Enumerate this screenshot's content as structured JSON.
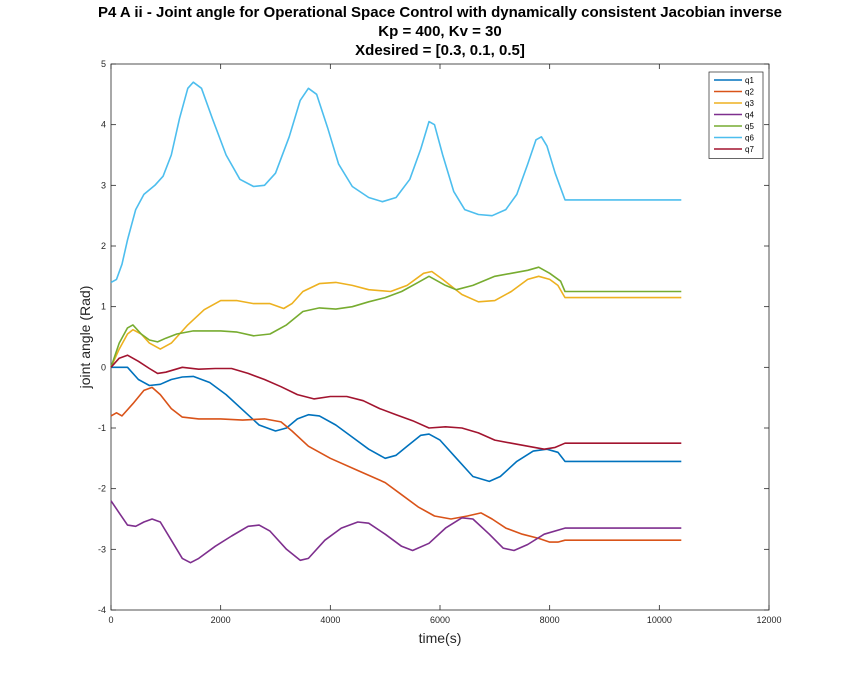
{
  "chart_data": {
    "type": "line",
    "title": "P4 A ii - Joint angle for Operational Space Control with dynamically consistent Jacobian inverse",
    "subtitle": "Kp = 400, Kv = 30",
    "subtitle2": "Xdesired = [0.3, 0.1, 0.5]",
    "xlabel": "time(s)",
    "ylabel": "joint angle (Rad)",
    "xlim": [
      0,
      12000
    ],
    "ylim": [
      -4,
      5
    ],
    "xticks": [
      0,
      2000,
      4000,
      6000,
      8000,
      10000,
      12000
    ],
    "yticks": [
      -4,
      -3,
      -2,
      -1,
      0,
      1,
      2,
      3,
      4,
      5
    ],
    "grid": false,
    "legend_position": "top-right",
    "series": [
      {
        "name": "q1",
        "color": "#0072BD",
        "points": [
          [
            0,
            0
          ],
          [
            300,
            0
          ],
          [
            500,
            -0.2
          ],
          [
            700,
            -0.3
          ],
          [
            900,
            -0.28
          ],
          [
            1100,
            -0.2
          ],
          [
            1300,
            -0.16
          ],
          [
            1500,
            -0.15
          ],
          [
            1800,
            -0.25
          ],
          [
            2100,
            -0.45
          ],
          [
            2400,
            -0.7
          ],
          [
            2700,
            -0.95
          ],
          [
            3000,
            -1.05
          ],
          [
            3200,
            -1
          ],
          [
            3400,
            -0.85
          ],
          [
            3600,
            -0.78
          ],
          [
            3800,
            -0.8
          ],
          [
            4100,
            -0.95
          ],
          [
            4400,
            -1.15
          ],
          [
            4700,
            -1.35
          ],
          [
            5000,
            -1.5
          ],
          [
            5200,
            -1.45
          ],
          [
            5400,
            -1.3
          ],
          [
            5650,
            -1.12
          ],
          [
            5800,
            -1.1
          ],
          [
            6000,
            -1.2
          ],
          [
            6300,
            -1.5
          ],
          [
            6600,
            -1.8
          ],
          [
            6900,
            -1.88
          ],
          [
            7100,
            -1.8
          ],
          [
            7400,
            -1.55
          ],
          [
            7700,
            -1.38
          ],
          [
            7950,
            -1.35
          ],
          [
            8150,
            -1.4
          ],
          [
            8280,
            -1.55
          ],
          [
            10400,
            -1.55
          ]
        ]
      },
      {
        "name": "q2",
        "color": "#D95319",
        "points": [
          [
            0,
            -0.8
          ],
          [
            100,
            -0.75
          ],
          [
            200,
            -0.8
          ],
          [
            400,
            -0.6
          ],
          [
            600,
            -0.38
          ],
          [
            750,
            -0.33
          ],
          [
            900,
            -0.45
          ],
          [
            1100,
            -0.68
          ],
          [
            1300,
            -0.82
          ],
          [
            1600,
            -0.85
          ],
          [
            2000,
            -0.85
          ],
          [
            2400,
            -0.87
          ],
          [
            2800,
            -0.85
          ],
          [
            3100,
            -0.9
          ],
          [
            3300,
            -1.05
          ],
          [
            3600,
            -1.3
          ],
          [
            4000,
            -1.5
          ],
          [
            4500,
            -1.7
          ],
          [
            5000,
            -1.9
          ],
          [
            5300,
            -2.1
          ],
          [
            5600,
            -2.3
          ],
          [
            5900,
            -2.45
          ],
          [
            6200,
            -2.5
          ],
          [
            6500,
            -2.45
          ],
          [
            6750,
            -2.4
          ],
          [
            6950,
            -2.5
          ],
          [
            7200,
            -2.65
          ],
          [
            7500,
            -2.75
          ],
          [
            7800,
            -2.82
          ],
          [
            8000,
            -2.88
          ],
          [
            8150,
            -2.88
          ],
          [
            8280,
            -2.85
          ],
          [
            10400,
            -2.85
          ]
        ]
      },
      {
        "name": "q3",
        "color": "#EDB120",
        "points": [
          [
            0,
            0
          ],
          [
            150,
            0.3
          ],
          [
            300,
            0.55
          ],
          [
            400,
            0.62
          ],
          [
            550,
            0.55
          ],
          [
            700,
            0.4
          ],
          [
            900,
            0.3
          ],
          [
            1100,
            0.4
          ],
          [
            1400,
            0.7
          ],
          [
            1700,
            0.95
          ],
          [
            2000,
            1.1
          ],
          [
            2300,
            1.1
          ],
          [
            2600,
            1.05
          ],
          [
            2900,
            1.05
          ],
          [
            3150,
            0.97
          ],
          [
            3300,
            1.05
          ],
          [
            3500,
            1.25
          ],
          [
            3800,
            1.38
          ],
          [
            4100,
            1.4
          ],
          [
            4400,
            1.35
          ],
          [
            4700,
            1.28
          ],
          [
            5100,
            1.25
          ],
          [
            5400,
            1.35
          ],
          [
            5700,
            1.55
          ],
          [
            5850,
            1.58
          ],
          [
            6050,
            1.45
          ],
          [
            6400,
            1.2
          ],
          [
            6700,
            1.08
          ],
          [
            7000,
            1.1
          ],
          [
            7300,
            1.25
          ],
          [
            7600,
            1.45
          ],
          [
            7800,
            1.5
          ],
          [
            8000,
            1.45
          ],
          [
            8150,
            1.35
          ],
          [
            8280,
            1.15
          ],
          [
            10400,
            1.15
          ]
        ]
      },
      {
        "name": "q4",
        "color": "#7E2F8E",
        "points": [
          [
            0,
            -2.2
          ],
          [
            150,
            -2.4
          ],
          [
            300,
            -2.6
          ],
          [
            450,
            -2.62
          ],
          [
            600,
            -2.55
          ],
          [
            750,
            -2.5
          ],
          [
            900,
            -2.55
          ],
          [
            1100,
            -2.85
          ],
          [
            1300,
            -3.15
          ],
          [
            1450,
            -3.22
          ],
          [
            1600,
            -3.15
          ],
          [
            1900,
            -2.95
          ],
          [
            2200,
            -2.78
          ],
          [
            2500,
            -2.62
          ],
          [
            2700,
            -2.6
          ],
          [
            2900,
            -2.7
          ],
          [
            3200,
            -3
          ],
          [
            3450,
            -3.18
          ],
          [
            3600,
            -3.15
          ],
          [
            3900,
            -2.85
          ],
          [
            4200,
            -2.65
          ],
          [
            4500,
            -2.55
          ],
          [
            4700,
            -2.57
          ],
          [
            5000,
            -2.75
          ],
          [
            5300,
            -2.95
          ],
          [
            5500,
            -3.02
          ],
          [
            5800,
            -2.9
          ],
          [
            6100,
            -2.65
          ],
          [
            6400,
            -2.48
          ],
          [
            6600,
            -2.5
          ],
          [
            6900,
            -2.75
          ],
          [
            7150,
            -2.98
          ],
          [
            7350,
            -3.02
          ],
          [
            7600,
            -2.92
          ],
          [
            7900,
            -2.75
          ],
          [
            8280,
            -2.65
          ],
          [
            10400,
            -2.65
          ]
        ]
      },
      {
        "name": "q5",
        "color": "#77AC30",
        "points": [
          [
            0,
            0
          ],
          [
            150,
            0.4
          ],
          [
            300,
            0.65
          ],
          [
            400,
            0.7
          ],
          [
            550,
            0.55
          ],
          [
            700,
            0.45
          ],
          [
            850,
            0.42
          ],
          [
            1000,
            0.48
          ],
          [
            1200,
            0.55
          ],
          [
            1500,
            0.6
          ],
          [
            2000,
            0.6
          ],
          [
            2300,
            0.58
          ],
          [
            2600,
            0.52
          ],
          [
            2900,
            0.55
          ],
          [
            3200,
            0.7
          ],
          [
            3500,
            0.92
          ],
          [
            3800,
            0.98
          ],
          [
            4100,
            0.96
          ],
          [
            4400,
            1.0
          ],
          [
            4700,
            1.08
          ],
          [
            5000,
            1.15
          ],
          [
            5300,
            1.25
          ],
          [
            5600,
            1.4
          ],
          [
            5800,
            1.5
          ],
          [
            6100,
            1.35
          ],
          [
            6300,
            1.28
          ],
          [
            6600,
            1.35
          ],
          [
            7000,
            1.5
          ],
          [
            7300,
            1.55
          ],
          [
            7600,
            1.6
          ],
          [
            7800,
            1.65
          ],
          [
            8000,
            1.55
          ],
          [
            8200,
            1.42
          ],
          [
            8280,
            1.25
          ],
          [
            10400,
            1.25
          ]
        ]
      },
      {
        "name": "q6",
        "color": "#4DBEEE",
        "points": [
          [
            0,
            1.4
          ],
          [
            100,
            1.45
          ],
          [
            200,
            1.7
          ],
          [
            300,
            2.1
          ],
          [
            450,
            2.6
          ],
          [
            600,
            2.85
          ],
          [
            800,
            3.0
          ],
          [
            950,
            3.15
          ],
          [
            1100,
            3.5
          ],
          [
            1250,
            4.1
          ],
          [
            1400,
            4.6
          ],
          [
            1500,
            4.7
          ],
          [
            1650,
            4.6
          ],
          [
            1850,
            4.1
          ],
          [
            2100,
            3.5
          ],
          [
            2350,
            3.1
          ],
          [
            2600,
            2.98
          ],
          [
            2800,
            3.0
          ],
          [
            3000,
            3.2
          ],
          [
            3250,
            3.8
          ],
          [
            3450,
            4.4
          ],
          [
            3600,
            4.6
          ],
          [
            3750,
            4.5
          ],
          [
            3950,
            3.95
          ],
          [
            4150,
            3.35
          ],
          [
            4400,
            2.98
          ],
          [
            4700,
            2.8
          ],
          [
            4950,
            2.73
          ],
          [
            5200,
            2.8
          ],
          [
            5450,
            3.1
          ],
          [
            5650,
            3.6
          ],
          [
            5800,
            4.05
          ],
          [
            5900,
            4.0
          ],
          [
            6050,
            3.5
          ],
          [
            6250,
            2.9
          ],
          [
            6450,
            2.6
          ],
          [
            6700,
            2.52
          ],
          [
            6950,
            2.5
          ],
          [
            7200,
            2.6
          ],
          [
            7400,
            2.85
          ],
          [
            7600,
            3.35
          ],
          [
            7750,
            3.75
          ],
          [
            7850,
            3.8
          ],
          [
            7950,
            3.65
          ],
          [
            8100,
            3.2
          ],
          [
            8280,
            2.76
          ],
          [
            10400,
            2.76
          ]
        ]
      },
      {
        "name": "q7",
        "color": "#A2142F",
        "points": [
          [
            0,
            0
          ],
          [
            150,
            0.15
          ],
          [
            300,
            0.2
          ],
          [
            500,
            0.1
          ],
          [
            700,
            -0.02
          ],
          [
            850,
            -0.1
          ],
          [
            1000,
            -0.08
          ],
          [
            1300,
            0
          ],
          [
            1600,
            -0.03
          ],
          [
            1900,
            -0.02
          ],
          [
            2200,
            -0.02
          ],
          [
            2500,
            -0.1
          ],
          [
            2800,
            -0.2
          ],
          [
            3100,
            -0.32
          ],
          [
            3400,
            -0.45
          ],
          [
            3700,
            -0.52
          ],
          [
            4000,
            -0.48
          ],
          [
            4300,
            -0.48
          ],
          [
            4600,
            -0.55
          ],
          [
            4900,
            -0.68
          ],
          [
            5200,
            -0.78
          ],
          [
            5500,
            -0.88
          ],
          [
            5800,
            -1.0
          ],
          [
            6100,
            -0.98
          ],
          [
            6400,
            -1.0
          ],
          [
            6700,
            -1.08
          ],
          [
            7000,
            -1.2
          ],
          [
            7300,
            -1.25
          ],
          [
            7600,
            -1.3
          ],
          [
            7900,
            -1.35
          ],
          [
            8100,
            -1.32
          ],
          [
            8280,
            -1.25
          ],
          [
            10400,
            -1.25
          ]
        ]
      }
    ]
  }
}
